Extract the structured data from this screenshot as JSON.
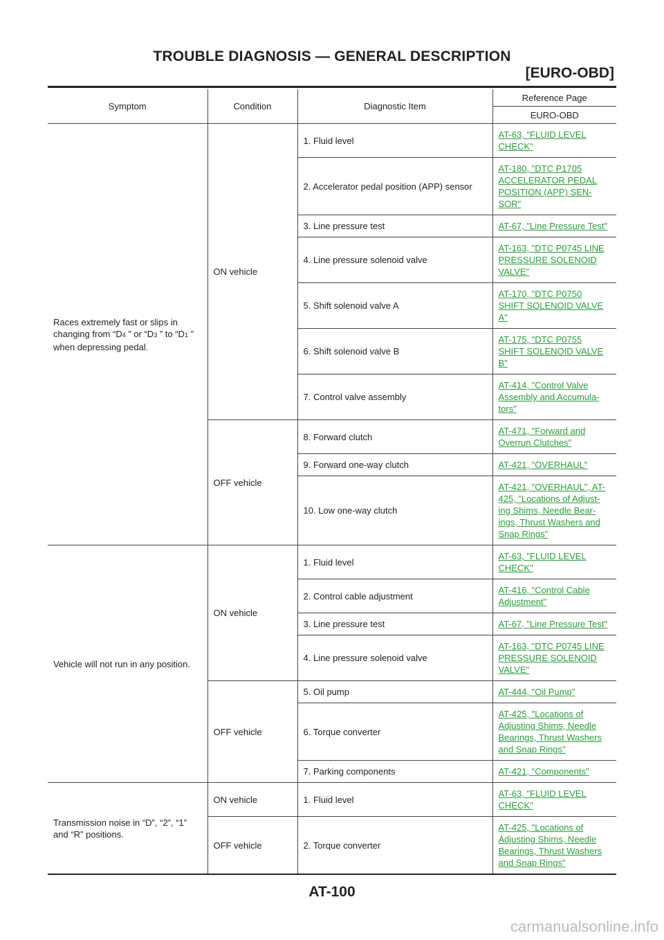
{
  "header": {
    "title": "TROUBLE DIAGNOSIS — GENERAL DESCRIPTION",
    "subtitle": "[EURO-OBD]"
  },
  "table": {
    "headers": {
      "symptom": "Symptom",
      "condition": "Condition",
      "diagnostic_item": "Diagnostic Item",
      "reference_page": "Reference Page",
      "euro_obd": "EURO-OBD"
    },
    "sections": [
      {
        "symptom_line1": "Races extremely fast or slips in",
        "symptom_line2a": "changing from “D",
        "symptom_sub1": "4",
        "symptom_line2b": " ” or “D",
        "symptom_sub2": "3",
        "symptom_line2c": " ” to “D",
        "symptom_sub3": "1",
        "symptom_line2d": " ”",
        "symptom_line3": "when depressing pedal.",
        "on_label": "ON vehicle",
        "off_label": "OFF vehicle",
        "on_rows": [
          {
            "item": "1. Fluid level",
            "ref": [
              "AT-63, \"FLUID LEVEL ",
              "CHECK\""
            ]
          },
          {
            "item": "2. Accelerator pedal position (APP) sensor",
            "ref": [
              "AT-180, \"DTC P1705 ",
              "ACCELERATOR PEDAL ",
              "POSITION (APP) SEN-",
              "SOR\""
            ]
          },
          {
            "item": "3. Line pressure test",
            "ref": [
              "AT-67, \"Line Pressure Test\""
            ]
          },
          {
            "item": "4. Line pressure solenoid valve",
            "ref": [
              "AT-163, \"DTC P0745 LINE ",
              "PRESSURE SOLENOID ",
              "VALVE\""
            ]
          },
          {
            "item": "5. Shift solenoid valve A",
            "ref": [
              "AT-170, \"DTC P0750 ",
              "SHIFT SOLENOID VALVE ",
              "A\""
            ]
          },
          {
            "item": "6. Shift solenoid valve B",
            "ref": [
              "AT-175, \"DTC P0755 ",
              "SHIFT SOLENOID VALVE ",
              "B\""
            ]
          },
          {
            "item": "7. Control valve assembly",
            "ref": [
              "AT-414, \"Control Valve ",
              "Assembly and Accumula-",
              "tors\""
            ]
          }
        ],
        "off_rows": [
          {
            "item": "8. Forward clutch",
            "ref": [
              "AT-471, \"Forward and ",
              "Overrun Clutches\""
            ]
          },
          {
            "item": "9. Forward one-way clutch",
            "ref": [
              "AT-421, \"OVERHAUL\""
            ]
          },
          {
            "item": "10. Low one-way clutch",
            "ref": [
              "AT-421, \"OVERHAUL\", AT-",
              "425, \"Locations of Adjust-",
              "ing Shims, Needle Bear-",
              "ings, Thrust Washers and ",
              "Snap Rings\""
            ]
          }
        ]
      },
      {
        "symptom": "Vehicle will not run in any position.",
        "on_label": "ON vehicle",
        "off_label": "OFF vehicle",
        "on_rows": [
          {
            "item": "1. Fluid level",
            "ref": [
              "AT-63, \"FLUID LEVEL ",
              "CHECK\""
            ]
          },
          {
            "item": "2. Control cable adjustment",
            "ref": [
              "AT-416, \"Control Cable ",
              "Adjustment\""
            ]
          },
          {
            "item": "3. Line pressure test",
            "ref": [
              "AT-67, \"Line Pressure Test\""
            ]
          },
          {
            "item": "4. Line pressure solenoid valve",
            "ref": [
              "AT-163, \"DTC P0745 LINE ",
              "PRESSURE SOLENOID ",
              "VALVE\""
            ]
          }
        ],
        "off_rows": [
          {
            "item": "5. Oil pump",
            "ref": [
              "AT-444, \"Oil Pump\""
            ]
          },
          {
            "item": "6. Torque converter",
            "ref": [
              "AT-425, \"Locations of ",
              "Adjusting Shims, Needle ",
              "Bearings, Thrust Washers ",
              "and Snap Rings\""
            ]
          },
          {
            "item": "7. Parking components",
            "ref": [
              "AT-421, \"Components\""
            ]
          }
        ]
      },
      {
        "symptom_line1": "Transmission noise in “D”, “2”, “1”",
        "symptom_line2": "and “R” positions.",
        "on_label": "ON vehicle",
        "off_label": "OFF vehicle",
        "on_rows": [
          {
            "item": "1. Fluid level",
            "ref": [
              "AT-63, \"FLUID LEVEL ",
              "CHECK\""
            ]
          }
        ],
        "off_rows": [
          {
            "item": "2. Torque converter",
            "ref": [
              "AT-425, \"Locations of ",
              "Adjusting Shims, Needle ",
              "Bearings, Thrust Washers ",
              "and Snap Rings\""
            ]
          }
        ]
      }
    ]
  },
  "footer": {
    "page_number": "AT-100",
    "watermark": "carmanualsonline.info"
  },
  "colors": {
    "link": "#2a9d3a",
    "text": "#222222"
  }
}
